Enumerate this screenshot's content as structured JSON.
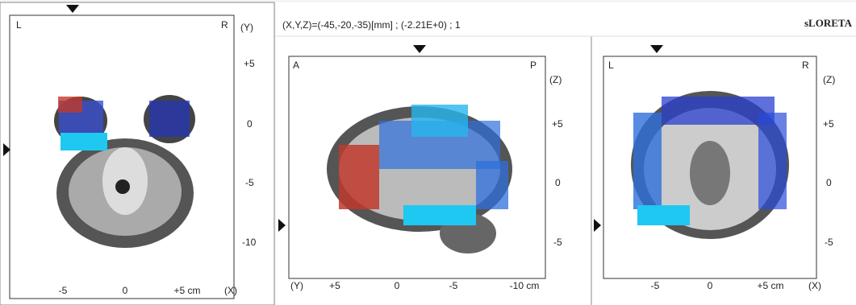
{
  "header": {
    "coordinates": "(X,Y,Z)=(-45,-20,-35)[mm]  ;  (-2.21E+0)  ;  1",
    "method": "sLORETA"
  },
  "views": [
    {
      "corner_left": "L",
      "corner_right": "R",
      "vertical_axis": "(Y)",
      "vertical_ticks": [
        "+5",
        "0",
        "-5",
        "-10"
      ],
      "horizontal_ticks": [
        "-5",
        "0",
        "+5 cm"
      ],
      "horizontal_axis": "(X)"
    },
    {
      "corner_left": "A",
      "corner_right": "P",
      "vertical_axis": "(Z)",
      "vertical_ticks": [
        "+5",
        "0",
        "-5"
      ],
      "horizontal_axis": "(Y)",
      "horizontal_ticks": [
        "+5",
        "0",
        "-5",
        "-10 cm"
      ]
    },
    {
      "corner_left": "L",
      "corner_right": "R",
      "vertical_axis": "(Z)",
      "vertical_ticks": [
        "+5",
        "0",
        "-5"
      ],
      "horizontal_ticks": [
        "-5",
        "0",
        "+5 cm"
      ],
      "horizontal_axis": "(X)"
    }
  ]
}
